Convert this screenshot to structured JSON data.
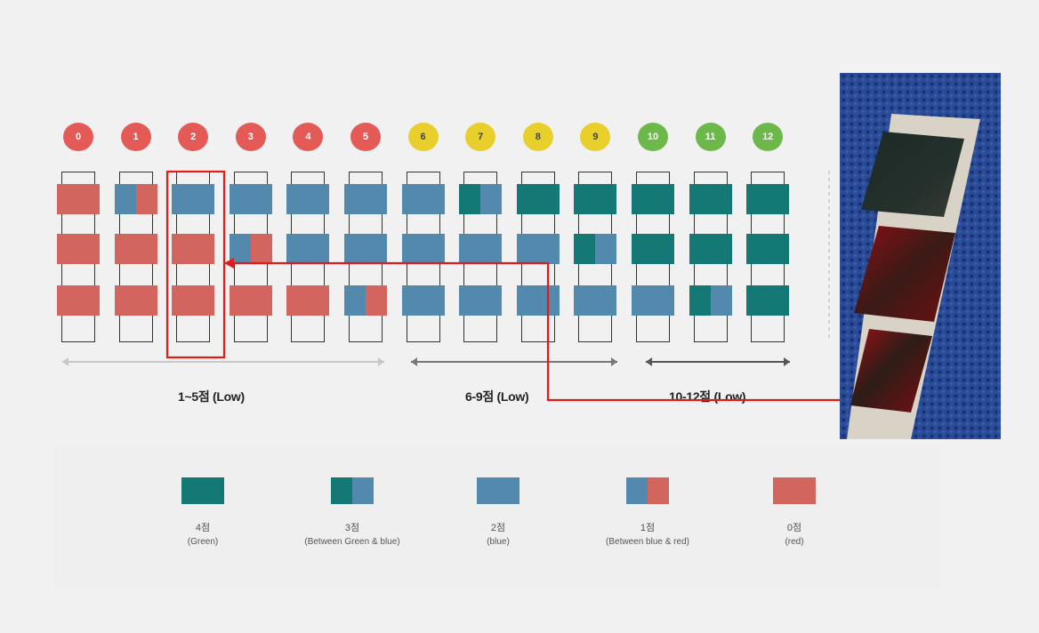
{
  "colors": {
    "green": "#147875",
    "blue": "#5289ad",
    "red": "#d2665e",
    "circle_red": "#e35a56",
    "circle_yellow": "#e8cf2b",
    "circle_green": "#6cb84a",
    "highlight": "#e41b1b"
  },
  "scores": [
    {
      "label": "0",
      "color": "red"
    },
    {
      "label": "1",
      "color": "red"
    },
    {
      "label": "2",
      "color": "red"
    },
    {
      "label": "3",
      "color": "red"
    },
    {
      "label": "4",
      "color": "red"
    },
    {
      "label": "5",
      "color": "red"
    },
    {
      "label": "6",
      "color": "yellow"
    },
    {
      "label": "7",
      "color": "yellow"
    },
    {
      "label": "8",
      "color": "yellow"
    },
    {
      "label": "9",
      "color": "yellow"
    },
    {
      "label": "10",
      "color": "green"
    },
    {
      "label": "11",
      "color": "green"
    },
    {
      "label": "12",
      "color": "green"
    }
  ],
  "strips": [
    [
      "red",
      "red",
      "red"
    ],
    [
      "blue-red",
      "red",
      "red"
    ],
    [
      "blue",
      "red",
      "red"
    ],
    [
      "blue",
      "blue-red",
      "red"
    ],
    [
      "blue",
      "blue",
      "red"
    ],
    [
      "blue",
      "blue",
      "blue-red"
    ],
    [
      "blue",
      "blue",
      "blue"
    ],
    [
      "green-blue",
      "blue",
      "blue"
    ],
    [
      "green",
      "blue",
      "blue"
    ],
    [
      "green",
      "green-blue",
      "blue"
    ],
    [
      "green",
      "green",
      "blue"
    ],
    [
      "green",
      "green",
      "green-blue"
    ],
    [
      "green",
      "green",
      "green"
    ]
  ],
  "ranges": [
    {
      "label": "1~5점 (Low)"
    },
    {
      "label": "6-9점 (Low)"
    },
    {
      "label": "10-12점 (Low)"
    }
  ],
  "legend": [
    {
      "swatch": "green",
      "points": "4점",
      "desc": "(Green)"
    },
    {
      "swatch": "green-blue",
      "points": "3점",
      "desc": "(Between Green & blue)"
    },
    {
      "swatch": "blue",
      "points": "2점",
      "desc": "(blue)"
    },
    {
      "swatch": "blue-red",
      "points": "1점",
      "desc": "(Between blue & red)"
    },
    {
      "swatch": "red",
      "points": "0점",
      "desc": "(red)"
    }
  ]
}
